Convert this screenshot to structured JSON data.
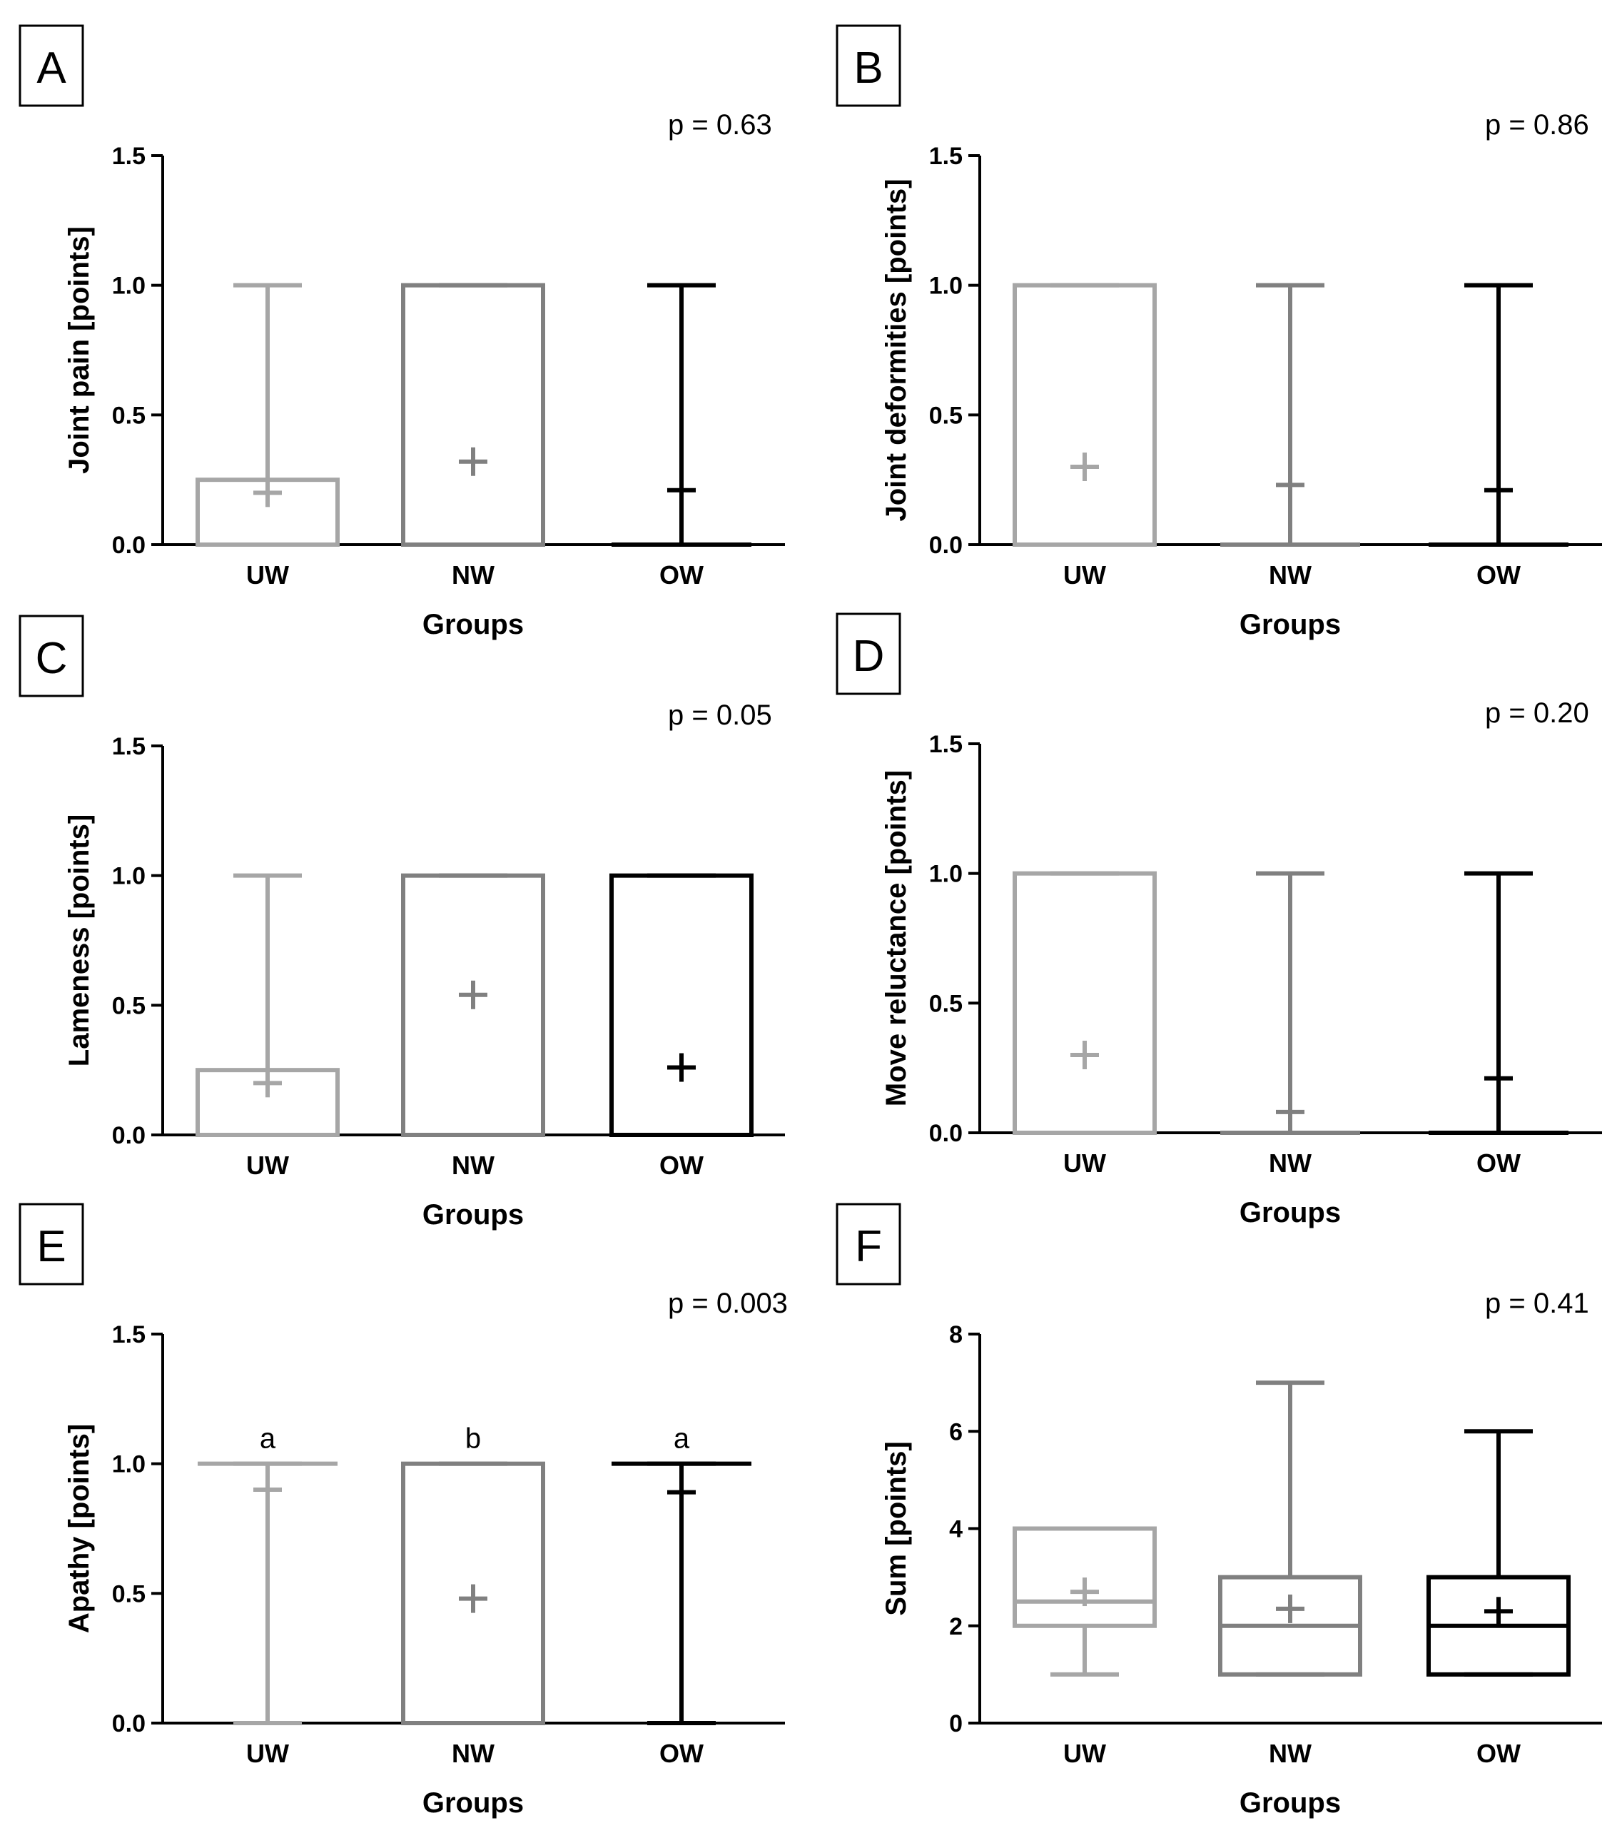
{
  "chart_data": [
    {
      "panel": "A",
      "type": "box",
      "p_value": "p = 0.63",
      "xlabel": "Groups",
      "ylabel": "Joint pain [points]",
      "ylim": [
        0,
        1.5
      ],
      "yticks": [
        "0.0",
        "0.5",
        "1.0",
        "1.5"
      ],
      "categories": [
        "UW",
        "NW",
        "OW"
      ],
      "series": [
        {
          "name": "UW",
          "color": "#a6a6a6",
          "min": 0,
          "q1": 0,
          "median": 0,
          "q3": 0.25,
          "max": 1,
          "mean": 0.2
        },
        {
          "name": "NW",
          "color": "#808080",
          "min": 0,
          "q1": 0,
          "median": 0,
          "q3": 1,
          "max": 1,
          "mean": 0.32
        },
        {
          "name": "OW",
          "color": "#000000",
          "min": 0,
          "q1": 0,
          "median": 0,
          "q3": 0,
          "max": 1,
          "mean": 0.21
        }
      ]
    },
    {
      "panel": "B",
      "type": "box",
      "p_value": "p = 0.86",
      "xlabel": "Groups",
      "ylabel": "Joint deformities [points]",
      "ylim": [
        0,
        1.5
      ],
      "yticks": [
        "0.0",
        "0.5",
        "1.0",
        "1.5"
      ],
      "categories": [
        "UW",
        "NW",
        "OW"
      ],
      "series": [
        {
          "name": "UW",
          "color": "#a6a6a6",
          "min": 0,
          "q1": 0,
          "median": 0,
          "q3": 1,
          "max": 1,
          "mean": 0.3
        },
        {
          "name": "NW",
          "color": "#808080",
          "min": 0,
          "q1": 0,
          "median": 0,
          "q3": 0,
          "max": 1,
          "mean": 0.23
        },
        {
          "name": "OW",
          "color": "#000000",
          "min": 0,
          "q1": 0,
          "median": 0,
          "q3": 0,
          "max": 1,
          "mean": 0.21
        }
      ]
    },
    {
      "panel": "C",
      "type": "box",
      "p_value": "p = 0.05",
      "xlabel": "Groups",
      "ylabel": "Lameness [points]",
      "ylim": [
        0,
        1.5
      ],
      "yticks": [
        "0.0",
        "0.5",
        "1.0",
        "1.5"
      ],
      "categories": [
        "UW",
        "NW",
        "OW"
      ],
      "series": [
        {
          "name": "UW",
          "color": "#a6a6a6",
          "min": 0,
          "q1": 0,
          "median": 0,
          "q3": 0.25,
          "max": 1,
          "mean": 0.2
        },
        {
          "name": "NW",
          "color": "#808080",
          "min": 0,
          "q1": 0,
          "median": 0,
          "q3": 1,
          "max": 1,
          "mean": 0.54
        },
        {
          "name": "OW",
          "color": "#000000",
          "min": 0,
          "q1": 0,
          "median": 0,
          "q3": 1,
          "max": 1,
          "mean": 0.26
        }
      ]
    },
    {
      "panel": "D",
      "type": "box",
      "p_value": "p = 0.20",
      "xlabel": "Groups",
      "ylabel": "Move reluctance [points]",
      "ylim": [
        0,
        1.5
      ],
      "yticks": [
        "0.0",
        "0.5",
        "1.0",
        "1.5"
      ],
      "categories": [
        "UW",
        "NW",
        "OW"
      ],
      "series": [
        {
          "name": "UW",
          "color": "#a6a6a6",
          "min": 0,
          "q1": 0,
          "median": 0,
          "q3": 1,
          "max": 1,
          "mean": 0.3
        },
        {
          "name": "NW",
          "color": "#808080",
          "min": 0,
          "q1": 0,
          "median": 0,
          "q3": 0,
          "max": 1,
          "mean": 0.08
        },
        {
          "name": "OW",
          "color": "#000000",
          "min": 0,
          "q1": 0,
          "median": 0,
          "q3": 0,
          "max": 1,
          "mean": 0.21
        }
      ]
    },
    {
      "panel": "E",
      "type": "box",
      "p_value": "p = 0.003",
      "xlabel": "Groups",
      "ylabel": "Apathy [points]",
      "ylim": [
        0,
        1.5
      ],
      "yticks": [
        "0.0",
        "0.5",
        "1.0",
        "1.5"
      ],
      "categories": [
        "UW",
        "NW",
        "OW"
      ],
      "significance": [
        "a",
        "b",
        "a"
      ],
      "series": [
        {
          "name": "UW",
          "color": "#a6a6a6",
          "min": 0,
          "q1": 1,
          "median": 1,
          "q3": 1,
          "max": 1,
          "mean": 0.9
        },
        {
          "name": "NW",
          "color": "#808080",
          "min": 0,
          "q1": 0,
          "median": 0,
          "q3": 1,
          "max": 1,
          "mean": 0.48
        },
        {
          "name": "OW",
          "color": "#000000",
          "min": 0,
          "q1": 1,
          "median": 1,
          "q3": 1,
          "max": 1,
          "mean": 0.89
        }
      ]
    },
    {
      "panel": "F",
      "type": "box",
      "p_value": "p = 0.41",
      "xlabel": "Groups",
      "ylabel": "Sum [points]",
      "ylim": [
        0,
        8
      ],
      "yticks": [
        "0",
        "2",
        "4",
        "6",
        "8"
      ],
      "categories": [
        "UW",
        "NW",
        "OW"
      ],
      "series": [
        {
          "name": "UW",
          "color": "#a6a6a6",
          "min": 1,
          "q1": 2,
          "median": 2.5,
          "q3": 4,
          "max": 4,
          "mean": 2.7
        },
        {
          "name": "NW",
          "color": "#808080",
          "min": 1,
          "q1": 1,
          "median": 2,
          "q3": 3,
          "max": 7,
          "mean": 2.35
        },
        {
          "name": "OW",
          "color": "#000000",
          "min": 1,
          "q1": 1,
          "median": 2,
          "q3": 3,
          "max": 6,
          "mean": 2.3
        }
      ]
    }
  ]
}
